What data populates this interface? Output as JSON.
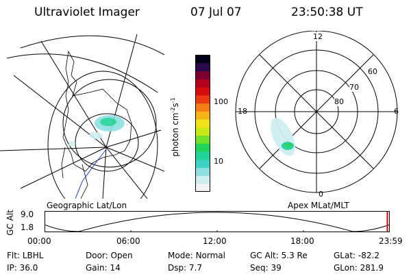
{
  "header": {
    "instrument": "Ultraviolet Imager",
    "date": "07 Jul 07",
    "time": "23:50:38 UT"
  },
  "left_panel": {
    "caption": "Geographic Lat/Lon"
  },
  "right_panel": {
    "caption": "Apex MLat/MLT",
    "mlt_labels": [
      "12",
      "18",
      "6",
      "0"
    ],
    "lat_labels": [
      "60",
      "70",
      "80"
    ]
  },
  "colorbar": {
    "unit": "photon cm",
    "unit_exp1": "-2",
    "unit_mid": "s",
    "unit_exp2": "-1",
    "tick_labels": [
      "100",
      "10"
    ],
    "colors": [
      "#f2f2f2",
      "#cfeef0",
      "#8fdfe2",
      "#3fd3c8",
      "#22d39a",
      "#1fd35a",
      "#6fe02a",
      "#c8e817",
      "#f2e21a",
      "#f6b416",
      "#f47a14",
      "#ec3a10",
      "#d40d0e",
      "#b3001c",
      "#7a0030",
      "#2a0a4a",
      "#000018"
    ]
  },
  "timeline": {
    "ylabel": "GC Alt",
    "y_ticks": [
      "9.0",
      "1.8"
    ],
    "x_ticks": [
      "00:00",
      "06:00",
      "12:00",
      "18:00",
      "23:59"
    ],
    "current_fraction": 0.993
  },
  "status": {
    "row1": [
      {
        "label": "Flt:",
        "value": "LBHL"
      },
      {
        "label": "Door:",
        "value": "Open"
      },
      {
        "label": "Mode:",
        "value": "Normal"
      },
      {
        "label": "GC Alt:",
        "value": "5.3 Re"
      },
      {
        "label": "GLat:",
        "value": "-82.2"
      }
    ],
    "row2": [
      {
        "label": "IP:",
        "value": "36.0"
      },
      {
        "label": "Gain:",
        "value": "14"
      },
      {
        "label": "Dsp:",
        "value": "7.7"
      },
      {
        "label": "Seq:",
        "value": "39"
      },
      {
        "label": "GLon:",
        "value": "281.9"
      }
    ]
  }
}
